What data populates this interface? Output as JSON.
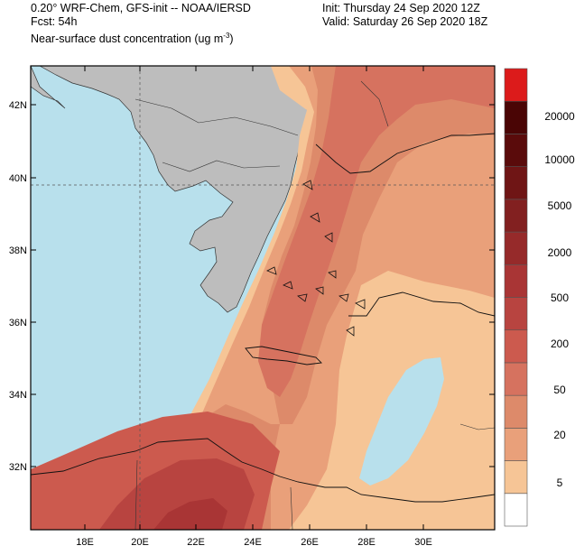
{
  "header": {
    "model_line": "0.20° WRF-Chem, GFS-init -- NOAA/IERSD",
    "fcst_line": "Fcst: 54h",
    "field_line": "Near-surface dust concentration (ug m",
    "field_unit_exp": "-3",
    "field_close": ")",
    "init_line": "Init: Thursday 24 Sep 2020  12Z",
    "valid_line": "Valid: Saturday 26 Sep 2020  18Z"
  },
  "map": {
    "lat_labels": [
      "42N",
      "40N",
      "38N",
      "36N",
      "34N",
      "32N"
    ],
    "lon_labels": [
      "18E",
      "20E",
      "22E",
      "24E",
      "26E",
      "28E",
      "30E"
    ],
    "colors": {
      "sea": "#b8e0ec",
      "land_masked": "#bdbdbd",
      "frame": "#000000"
    }
  },
  "colorbar": {
    "labels": [
      "20000",
      "10000",
      "5000",
      "2000",
      "500",
      "200",
      "50",
      "20",
      "5"
    ],
    "colors": [
      "#ffffff",
      "#f6c596",
      "#e9a07a",
      "#dd8a6a",
      "#d6725f",
      "#cc5a4e",
      "#b84440",
      "#a93535",
      "#962a2a",
      "#822020",
      "#6f1515",
      "#5a0b0b",
      "#4a0505",
      "#dc1b1b"
    ]
  }
}
